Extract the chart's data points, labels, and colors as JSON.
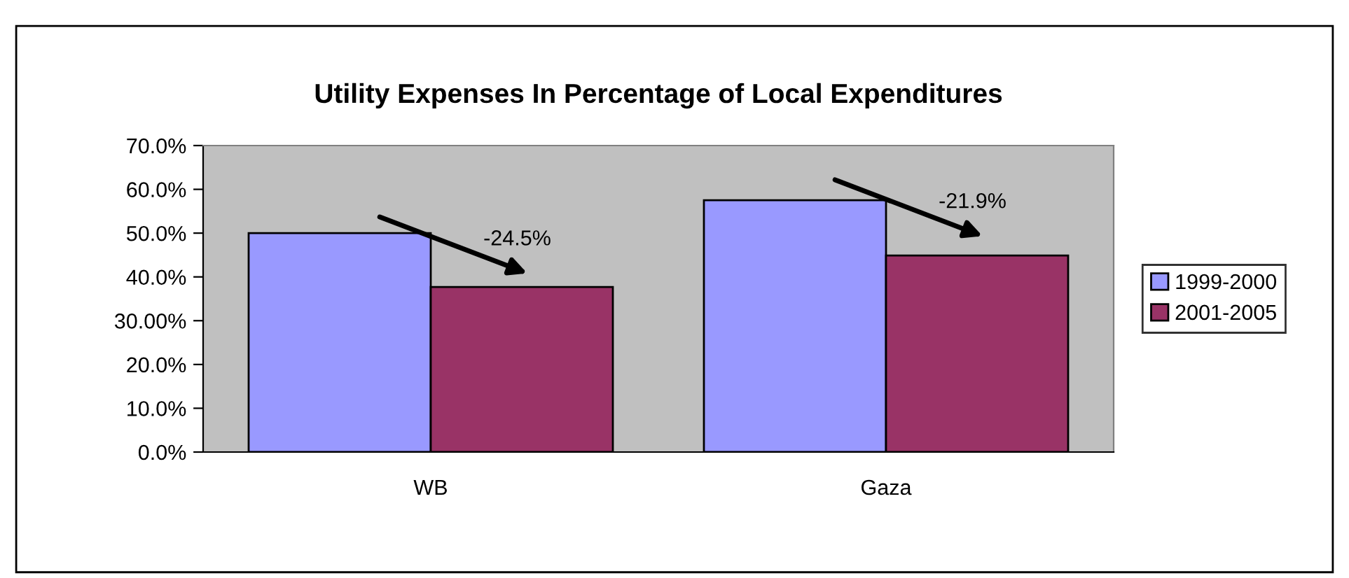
{
  "chart_data": {
    "type": "bar",
    "title": "Utility Expenses In Percentage of Local Expenditures",
    "categories": [
      "WB",
      "Gaza"
    ],
    "series": [
      {
        "name": "1999-2000",
        "color": "#9999ff",
        "values": [
          50.0,
          57.5
        ]
      },
      {
        "name": "2001-2005",
        "color": "#993366",
        "values": [
          37.7,
          44.9
        ]
      }
    ],
    "ylim": [
      0,
      70
    ],
    "yticks": [
      {
        "value": 0,
        "label": "0.0%"
      },
      {
        "value": 10,
        "label": "10.0%"
      },
      {
        "value": 20,
        "label": "20.0%"
      },
      {
        "value": 30,
        "label": "30.00%"
      },
      {
        "value": 40,
        "label": "40.0%"
      },
      {
        "value": 50,
        "label": "50.0%"
      },
      {
        "value": 60,
        "label": "60.0%"
      },
      {
        "value": 70,
        "label": "70.0%"
      }
    ],
    "annotations": [
      {
        "text": "-24.5%",
        "x": "WB",
        "y": 48.5
      },
      {
        "text": "-21.9%",
        "x": "Gaza",
        "y": 57
      }
    ],
    "grid": false,
    "legend": "right"
  }
}
